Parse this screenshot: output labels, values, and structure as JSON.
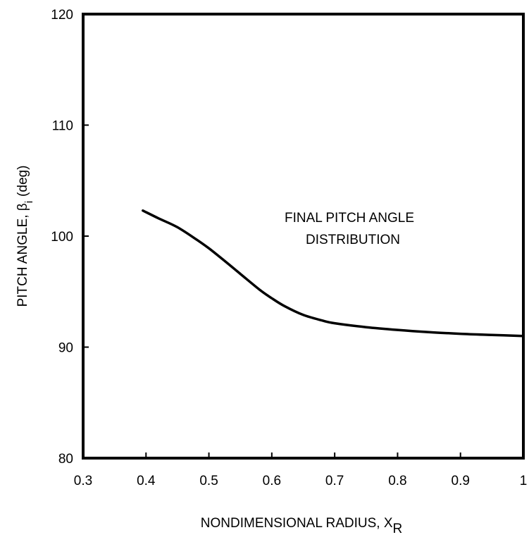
{
  "chart_data": {
    "type": "line",
    "title": "",
    "xlabel": "NONDIMENSIONAL RADIUS, X",
    "xlabel_sub": "R",
    "ylabel": "PITCH ANGLE, β",
    "ylabel_sub": "i",
    "ylabel_unit": "(deg)",
    "xlim": [
      0.3,
      1.0
    ],
    "ylim": [
      80,
      120
    ],
    "xticks": [
      0.3,
      0.4,
      0.5,
      0.6,
      0.7,
      0.8,
      0.9,
      1.0
    ],
    "xtick_labels": [
      "0.3",
      "0.4",
      "0.5",
      "0.6",
      "0.7",
      "0.8",
      "0.9",
      "1"
    ],
    "yticks": [
      80,
      90,
      100,
      110,
      120
    ],
    "ytick_labels": [
      "80",
      "90",
      "100",
      "110",
      "120"
    ],
    "grid": false,
    "legend": "none",
    "annotation_lines": [
      "FINAL PITCH ANGLE",
      "DISTRIBUTION"
    ],
    "series": [
      {
        "x": [
          0.395,
          0.42,
          0.45,
          0.48,
          0.5,
          0.52,
          0.55,
          0.58,
          0.6,
          0.62,
          0.65,
          0.68,
          0.7,
          0.75,
          0.8,
          0.85,
          0.9,
          0.95,
          1.0
        ],
        "values": [
          102.3,
          101.6,
          100.8,
          99.7,
          98.9,
          98.0,
          96.6,
          95.2,
          94.4,
          93.7,
          92.9,
          92.4,
          92.15,
          91.8,
          91.55,
          91.35,
          91.2,
          91.1,
          91.0
        ]
      }
    ],
    "colors": {
      "line": "#000000",
      "frame": "#000000"
    }
  }
}
